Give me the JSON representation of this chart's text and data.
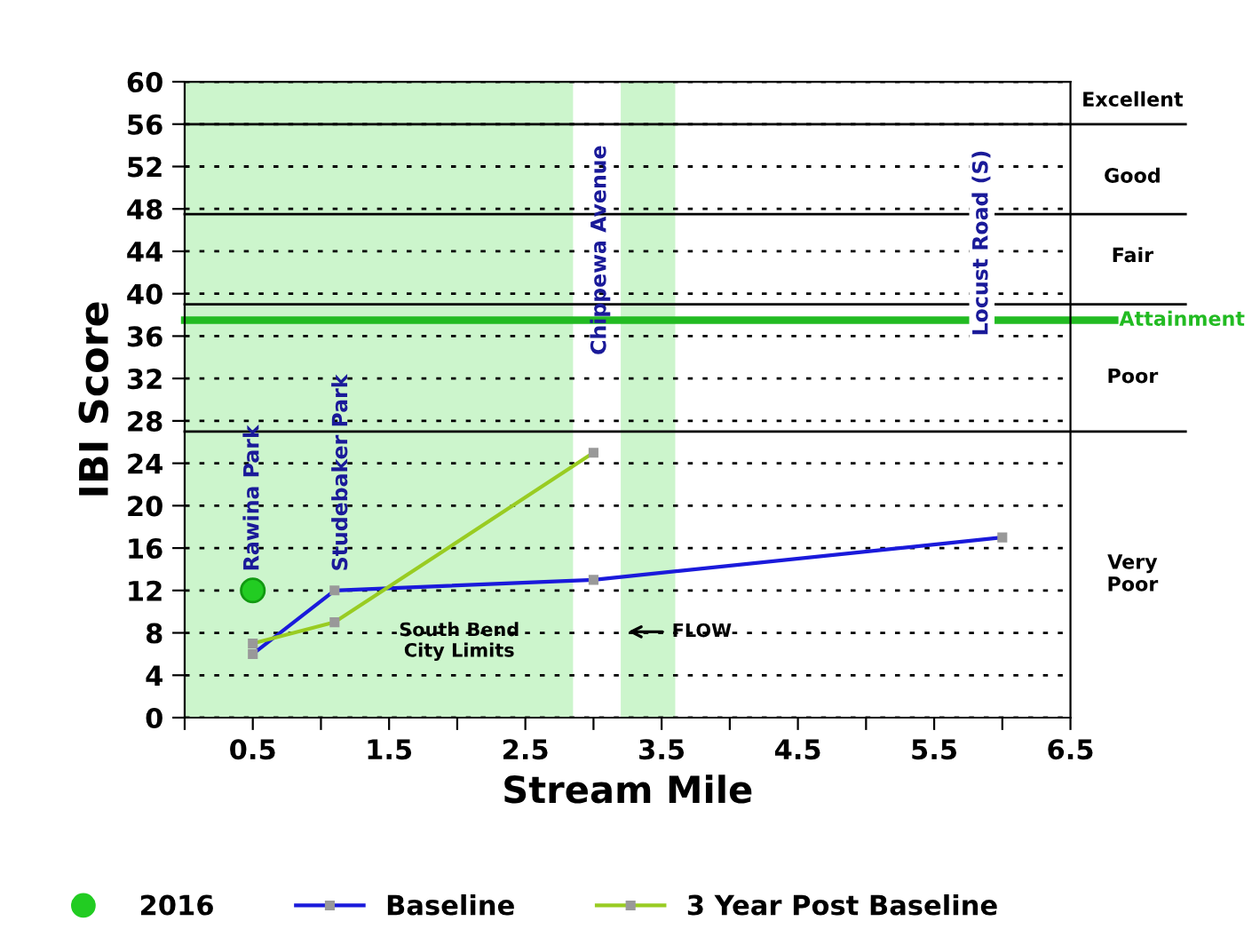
{
  "chart_data": {
    "type": "line",
    "xlabel": "Stream Mile",
    "ylabel": "IBI Score",
    "xlim": [
      0,
      6.5
    ],
    "xticks": [
      {
        "value": 0,
        "label": null
      },
      0.5,
      {
        "value": 1,
        "label": null
      },
      1.5,
      {
        "value": 2,
        "label": null
      },
      2.5,
      {
        "value": 3,
        "label": null
      },
      3.5,
      {
        "value": 4,
        "label": null
      },
      4.5,
      {
        "value": 5,
        "label": null
      },
      5.5,
      {
        "value": 6,
        "label": null
      },
      6.5
    ],
    "ylim": [
      0,
      60
    ],
    "yticks": [
      0,
      4,
      8,
      12,
      16,
      20,
      24,
      28,
      32,
      36,
      40,
      44,
      48,
      52,
      56,
      60
    ],
    "grid": "y",
    "legend": "bottom",
    "marker": "square",
    "line_style": "solid",
    "series": [
      {
        "name": "2016",
        "type": "scatter",
        "marker": "circle",
        "color": "#22cc22",
        "x": [
          0.5
        ],
        "values": [
          12
        ]
      },
      {
        "name": "Baseline",
        "color": "#1a1adb",
        "x": [
          0.5,
          1.1,
          3.0,
          6.0
        ],
        "values": [
          6,
          12,
          13,
          17
        ]
      },
      {
        "name": "3 Year Post Baseline",
        "color": "#99cc22",
        "x": [
          0.5,
          1.1,
          3.0
        ],
        "values": [
          7,
          9,
          25
        ]
      }
    ],
    "ref_lines": [
      {
        "axis": "y",
        "value": 37.5,
        "label": "Attainment",
        "color": "#22bb22"
      },
      {
        "axis": "y",
        "value": 56,
        "color": "#000000"
      },
      {
        "axis": "y",
        "value": 47.5,
        "color": "#000000"
      },
      {
        "axis": "y",
        "value": 39,
        "color": "#000000"
      },
      {
        "axis": "y",
        "value": 27,
        "color": "#000000"
      }
    ],
    "bands": [
      {
        "axis": "x",
        "from": 0,
        "to": 2.85,
        "color": "#ccf5cc"
      },
      {
        "axis": "x",
        "from": 3.2,
        "to": 3.6,
        "color": "#ccf5cc"
      }
    ],
    "annotations": [
      "Rawina Park",
      "Studebaker Park",
      "Chippewa Avenue",
      "Locust Road (S)",
      "South Bend\nCity Limits",
      "FLOW",
      "Excellent",
      "Good",
      "Fair",
      "Poor",
      "Very\nPoor"
    ]
  }
}
